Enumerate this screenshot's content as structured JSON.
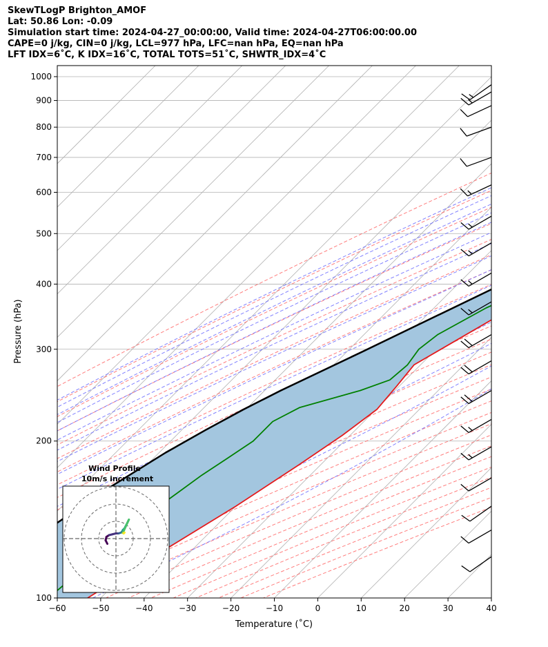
{
  "header": {
    "line1": "SkewTLogP Brighton_AMOF",
    "line2": "Lat: 50.86   Lon: -0.09",
    "line3": "Simulation start time: 2024-04-27_00:00:00, Valid time: 2024-04-27T06:00:00.00",
    "line4": "CAPE=0 j/kg, CIN=0 j/kg, LCL=977 hPa, LFC=nan hPa, EQ=nan hPa",
    "line5": "LFT IDX=6˚C, K IDX=16˚C, TOTAL TOTS=51˚C, SHWTR_IDX=4˚C"
  },
  "colors": {
    "temperature": "#e41a1c",
    "dewpoint": "#008000",
    "parcel": "#000000",
    "fill": "#a3c6df",
    "dry_adiabat": "#ff6666",
    "moist_adiabat": "#6b6bff",
    "mixing_ratio": "#8a2be2",
    "isotherm": "#b0b0b0"
  },
  "chart_data": [
    {
      "type": "line",
      "xlabel": "Temperature (˚C)",
      "ylabel": "Pressure (hPa)",
      "xlim": [
        -60,
        40
      ],
      "ylim": [
        1050,
        100
      ],
      "y_scale": "log",
      "x_ticks": [
        -60,
        -50,
        -40,
        -30,
        -20,
        -10,
        0,
        10,
        20,
        30,
        40
      ],
      "y_ticks": [
        1000,
        900,
        800,
        700,
        600,
        500,
        400,
        300,
        200,
        100
      ],
      "skew_deg": 45,
      "grid": true,
      "series": [
        {
          "key": "temperature",
          "points": [
            [
              7.9,
              985
            ],
            [
              9.1,
              960
            ],
            [
              9.0,
              925
            ],
            [
              7.5,
              880
            ],
            [
              6.1,
              850
            ],
            [
              5.4,
              800
            ],
            [
              4.4,
              750
            ],
            [
              3.2,
              700
            ],
            [
              1.6,
              650
            ],
            [
              0.0,
              600
            ],
            [
              -3.8,
              550
            ],
            [
              -7.6,
              500
            ],
            [
              -12.5,
              450
            ],
            [
              -17.5,
              400
            ],
            [
              -23.1,
              350
            ],
            [
              -28.9,
              300
            ],
            [
              -31.5,
              280
            ],
            [
              -30.6,
              255
            ],
            [
              -29.8,
              230
            ],
            [
              -31.8,
              205
            ],
            [
              -35.0,
              180
            ],
            [
              -40.0,
              150
            ],
            [
              -46.0,
              125
            ],
            [
              -53.0,
              100
            ]
          ]
        },
        {
          "key": "dewpoint",
          "points": [
            [
              8.0,
              970
            ],
            [
              8.6,
              950
            ],
            [
              8.2,
              910
            ],
            [
              5.0,
              860
            ],
            [
              1.5,
              820
            ],
            [
              -3.0,
              770
            ],
            [
              -6.0,
              720
            ],
            [
              -8.5,
              650
            ],
            [
              -7.2,
              600
            ],
            [
              -9.6,
              550
            ],
            [
              -12.1,
              510
            ],
            [
              -14.0,
              480
            ],
            [
              -16.3,
              440
            ],
            [
              -21.5,
              400
            ],
            [
              -28.0,
              360
            ],
            [
              -33.0,
              320
            ],
            [
              -34.0,
              300
            ],
            [
              -33.0,
              280
            ],
            [
              -33.6,
              262
            ],
            [
              -38.0,
              250
            ],
            [
              -48.0,
              232
            ],
            [
              -51.0,
              218
            ],
            [
              -51.0,
              200
            ],
            [
              -53.0,
              185
            ],
            [
              -55.0,
              172
            ],
            [
              -59.0,
              140
            ],
            [
              -62.0,
              100
            ]
          ]
        },
        {
          "key": "parcel",
          "points": [
            [
              7.5,
              985
            ],
            [
              6.6,
              977
            ],
            [
              5.4,
              925
            ],
            [
              3.3,
              850
            ],
            [
              0.0,
              750
            ],
            [
              -2.4,
              700
            ],
            [
              -5.2,
              650
            ],
            [
              -8.6,
              600
            ],
            [
              -12.9,
              550
            ],
            [
              -17.8,
              500
            ],
            [
              -23.4,
              450
            ],
            [
              -29.7,
              400
            ],
            [
              -37.2,
              350
            ],
            [
              -45.8,
              300
            ],
            [
              -56.3,
              250
            ],
            [
              -60.5,
              230
            ],
            [
              -64.5,
              210
            ],
            [
              -68.5,
              190
            ],
            [
              -74.0,
              160
            ],
            [
              -79.0,
              130
            ],
            [
              -82.5,
              100
            ]
          ]
        }
      ],
      "barbs": [
        {
          "p": 965,
          "speed": 16,
          "dir": 235
        },
        {
          "p": 935,
          "speed": 16,
          "dir": 240
        },
        {
          "p": 880,
          "speed": 12,
          "dir": 245
        },
        {
          "p": 800,
          "speed": 10,
          "dir": 250
        },
        {
          "p": 700,
          "speed": 12,
          "dir": 250
        },
        {
          "p": 620,
          "speed": 15,
          "dir": 245
        },
        {
          "p": 540,
          "speed": 18,
          "dir": 240
        },
        {
          "p": 480,
          "speed": 18,
          "dir": 240
        },
        {
          "p": 420,
          "speed": 18,
          "dir": 240
        },
        {
          "p": 370,
          "speed": 18,
          "dir": 240
        },
        {
          "p": 320,
          "speed": 20,
          "dir": 240
        },
        {
          "p": 285,
          "speed": 20,
          "dir": 240
        },
        {
          "p": 250,
          "speed": 20,
          "dir": 240
        },
        {
          "p": 220,
          "speed": 18,
          "dir": 240
        },
        {
          "p": 195,
          "speed": 16,
          "dir": 240
        },
        {
          "p": 170,
          "speed": 13,
          "dir": 240
        },
        {
          "p": 150,
          "speed": 13,
          "dir": 235
        },
        {
          "p": 135,
          "speed": 10,
          "dir": 240
        },
        {
          "p": 120,
          "speed": 10,
          "dir": 235
        }
      ]
    },
    {
      "type": "scatter",
      "title": "Wind Profile",
      "subtitle": "10m/s increment",
      "rings": [
        10,
        20,
        30
      ],
      "points": [
        [
          -5,
          -3
        ],
        [
          -6,
          -1
        ],
        [
          -5.5,
          1
        ],
        [
          -4,
          2
        ],
        [
          -2,
          2.5
        ],
        [
          0,
          3
        ],
        [
          1.5,
          3
        ],
        [
          3,
          3.5
        ],
        [
          3.5,
          4
        ],
        [
          4,
          5
        ],
        [
          5,
          6
        ],
        [
          5.5,
          7
        ],
        [
          6,
          8
        ],
        [
          6.5,
          9
        ],
        [
          7,
          10
        ],
        [
          7.5,
          11
        ],
        [
          4,
          3.3
        ],
        [
          4.5,
          3
        ],
        [
          5,
          3.5
        ]
      ],
      "colors": [
        "#440154",
        "#440154",
        "#440154",
        "#46327e",
        "#46327e",
        "#46327e",
        "#365c8d",
        "#277f8e",
        "#277f8e",
        "#1fa187",
        "#1fa187",
        "#1fa187",
        "#4ac16d",
        "#4ac16d",
        "#4ac16d",
        "#4ac16d",
        "#a0da39",
        "#fde725",
        "#fde725"
      ]
    }
  ]
}
